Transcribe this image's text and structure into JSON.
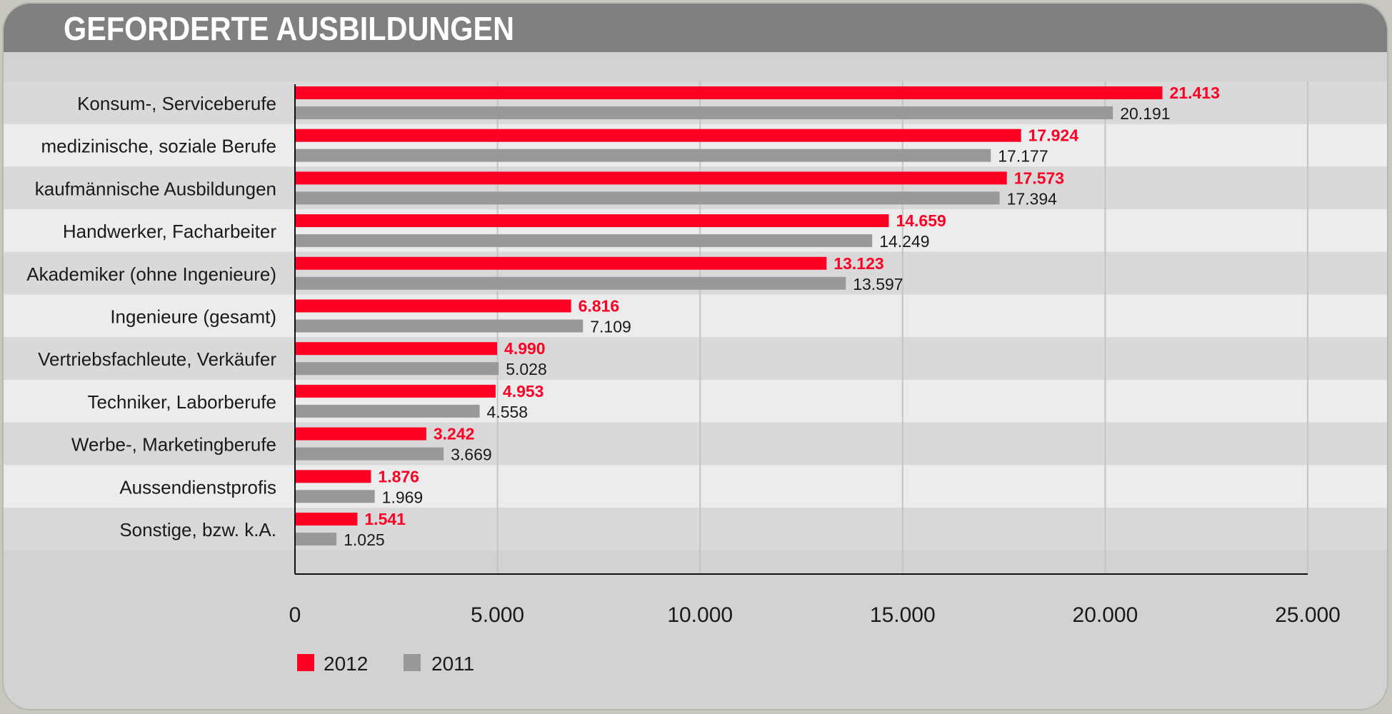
{
  "title": "GEFORDERTE AUSBILDUNGEN",
  "colors": {
    "series_2012": "#ff0025",
    "series_2011": "#999999",
    "header": "#808080"
  },
  "chart_data": {
    "type": "bar",
    "orientation": "horizontal",
    "title": "GEFORDERTE AUSBILDUNGEN",
    "categories": [
      "Konsum-, Serviceberufe",
      "medizinische, soziale Berufe",
      "kaufmännische Ausbildungen",
      "Handwerker, Facharbeiter",
      "Akademiker (ohne Ingenieure)",
      "Ingenieure (gesamt)",
      "Vertriebsfachleute, Verkäufer",
      "Techniker, Laborberufe",
      "Werbe-, Marketingberufe",
      "Aussendienstprofis",
      "Sonstige, bzw. k.A."
    ],
    "series": [
      {
        "name": "2012",
        "color": "#ff0025",
        "values": [
          21413,
          17924,
          17573,
          14659,
          13123,
          6816,
          4990,
          4953,
          3242,
          1876,
          1541
        ],
        "labels": [
          "21.413",
          "17.924",
          "17.573",
          "14.659",
          "13.123",
          "6.816",
          "4.990",
          "4.953",
          "3.242",
          "1.876",
          "1.541"
        ]
      },
      {
        "name": "2011",
        "color": "#999999",
        "values": [
          20191,
          17177,
          17394,
          14249,
          13597,
          7109,
          5028,
          4558,
          3669,
          1969,
          1025
        ],
        "labels": [
          "20.191",
          "17.177",
          "17.394",
          "14.249",
          "13.597",
          "7.109",
          "5.028",
          "4.558",
          "3.669",
          "1.969",
          "1.025"
        ]
      }
    ],
    "xlim": [
      0,
      25000
    ],
    "xticks": [
      0,
      5000,
      10000,
      15000,
      20000,
      25000
    ],
    "xtick_labels": [
      "0",
      "5.000",
      "10.000",
      "15.000",
      "20.000",
      "25.000"
    ],
    "grid": "vertical",
    "legend": "bottom-left"
  }
}
